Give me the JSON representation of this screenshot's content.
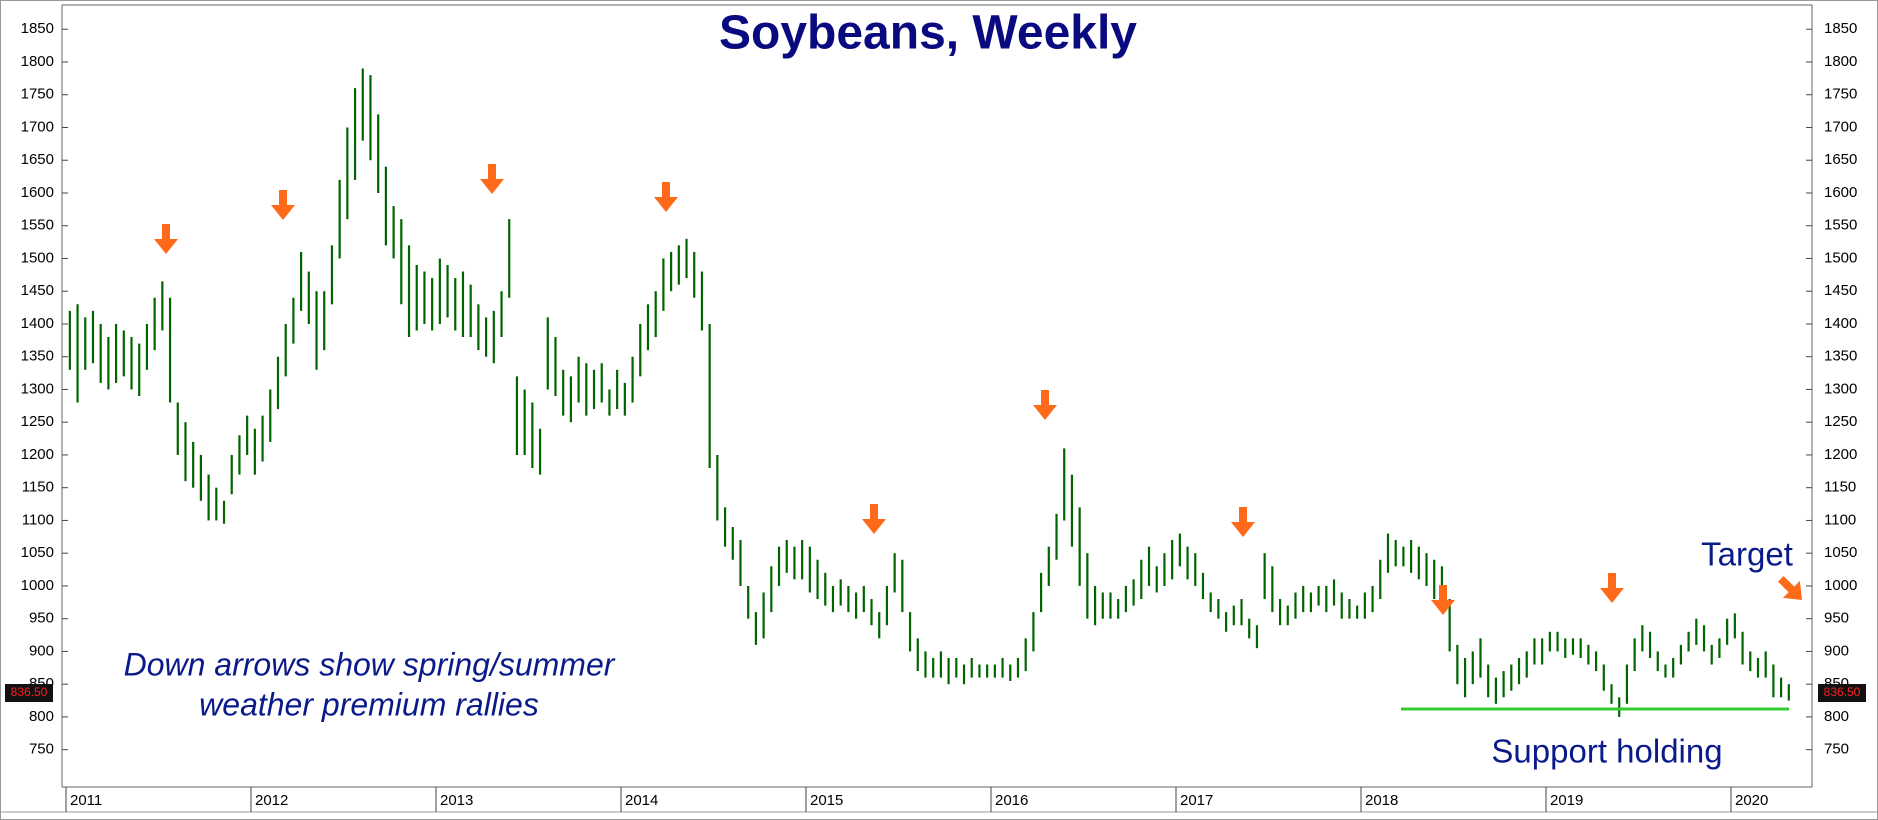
{
  "chart_data": {
    "type": "ohlc",
    "title": "Soybeans, Weekly",
    "color": "#006400",
    "annotation": [
      "Down arrows show spring/summer",
      "weather premium rallies"
    ],
    "target_label": "Target",
    "support": {
      "label": "Support holding",
      "value": 812,
      "color": "#33cc33"
    },
    "last_price": {
      "value": 836.5,
      "label": "836.50"
    },
    "ylim": [
      693,
      1887
    ],
    "yticks": [
      750,
      800,
      850,
      900,
      950,
      1000,
      1050,
      1100,
      1150,
      1200,
      1250,
      1300,
      1350,
      1400,
      1450,
      1500,
      1550,
      1600,
      1650,
      1700,
      1750,
      1800,
      1850
    ],
    "categories": [
      "2011",
      null,
      null,
      null,
      null,
      null,
      null,
      null,
      null,
      null,
      null,
      null,
      null,
      null,
      null,
      null,
      null,
      null,
      null,
      null,
      null,
      null,
      null,
      null,
      "2012",
      null,
      null,
      null,
      null,
      null,
      null,
      null,
      null,
      null,
      null,
      null,
      null,
      null,
      null,
      null,
      null,
      null,
      null,
      null,
      null,
      null,
      null,
      null,
      "2013",
      null,
      null,
      null,
      null,
      null,
      null,
      null,
      null,
      null,
      null,
      null,
      null,
      null,
      null,
      null,
      null,
      null,
      null,
      null,
      null,
      null,
      null,
      null,
      "2014",
      null,
      null,
      null,
      null,
      null,
      null,
      null,
      null,
      null,
      null,
      null,
      null,
      null,
      null,
      null,
      null,
      null,
      null,
      null,
      null,
      null,
      null,
      null,
      "2015",
      null,
      null,
      null,
      null,
      null,
      null,
      null,
      null,
      null,
      null,
      null,
      null,
      null,
      null,
      null,
      null,
      null,
      null,
      null,
      null,
      null,
      null,
      null,
      "2016",
      null,
      null,
      null,
      null,
      null,
      null,
      null,
      null,
      null,
      null,
      null,
      null,
      null,
      null,
      null,
      null,
      null,
      null,
      null,
      null,
      null,
      null,
      null,
      "2017",
      null,
      null,
      null,
      null,
      null,
      null,
      null,
      null,
      null,
      null,
      null,
      null,
      null,
      null,
      null,
      null,
      null,
      null,
      null,
      null,
      null,
      null,
      null,
      "2018",
      null,
      null,
      null,
      null,
      null,
      null,
      null,
      null,
      null,
      null,
      null,
      null,
      null,
      null,
      null,
      null,
      null,
      null,
      null,
      null,
      null,
      null,
      null,
      "2019",
      null,
      null,
      null,
      null,
      null,
      null,
      null,
      null,
      null,
      null,
      null,
      null,
      null,
      null,
      null,
      null,
      null,
      null,
      null,
      null,
      null,
      null,
      null,
      "2020",
      null,
      null,
      null,
      null,
      null,
      null,
      null
    ],
    "high": [
      1420,
      1430,
      1410,
      1420,
      1400,
      1380,
      1400,
      1390,
      1380,
      1370,
      1400,
      1440,
      1465,
      1440,
      1280,
      1250,
      1220,
      1200,
      1170,
      1150,
      1130,
      1200,
      1230,
      1260,
      1240,
      1260,
      1300,
      1350,
      1400,
      1440,
      1510,
      1480,
      1450,
      1450,
      1520,
      1620,
      1700,
      1760,
      1790,
      1780,
      1720,
      1640,
      1580,
      1560,
      1520,
      1490,
      1480,
      1470,
      1500,
      1490,
      1470,
      1480,
      1460,
      1430,
      1410,
      1420,
      1450,
      1560,
      1320,
      1300,
      1280,
      1240,
      1410,
      1380,
      1330,
      1320,
      1350,
      1340,
      1330,
      1340,
      1300,
      1330,
      1310,
      1350,
      1400,
      1430,
      1450,
      1500,
      1510,
      1520,
      1530,
      1510,
      1480,
      1400,
      1200,
      1120,
      1090,
      1070,
      1000,
      960,
      990,
      1030,
      1060,
      1070,
      1060,
      1070,
      1060,
      1040,
      1020,
      1000,
      1010,
      1000,
      990,
      1000,
      980,
      960,
      1000,
      1050,
      1040,
      960,
      920,
      900,
      890,
      900,
      890,
      890,
      880,
      890,
      880,
      880,
      880,
      890,
      880,
      890,
      920,
      960,
      1020,
      1060,
      1110,
      1210,
      1170,
      1120,
      1050,
      1000,
      990,
      990,
      980,
      1000,
      1010,
      1040,
      1060,
      1030,
      1050,
      1070,
      1080,
      1060,
      1050,
      1020,
      990,
      980,
      960,
      970,
      980,
      950,
      940,
      1050,
      1030,
      980,
      970,
      990,
      1000,
      990,
      1000,
      1000,
      1010,
      990,
      980,
      970,
      990,
      1000,
      1040,
      1080,
      1070,
      1060,
      1070,
      1060,
      1050,
      1040,
      1030,
      980,
      910,
      890,
      900,
      920,
      880,
      860,
      870,
      880,
      890,
      900,
      920,
      920,
      930,
      930,
      920,
      920,
      920,
      910,
      900,
      880,
      850,
      830,
      880,
      920,
      940,
      930,
      900,
      880,
      890,
      910,
      930,
      950,
      940,
      910,
      920,
      950,
      958,
      930,
      900,
      890,
      900,
      880,
      860,
      850
    ],
    "low": [
      1330,
      1280,
      1330,
      1340,
      1310,
      1300,
      1310,
      1320,
      1300,
      1290,
      1330,
      1360,
      1390,
      1280,
      1200,
      1160,
      1150,
      1130,
      1100,
      1100,
      1095,
      1140,
      1170,
      1200,
      1170,
      1190,
      1220,
      1270,
      1320,
      1370,
      1420,
      1400,
      1330,
      1360,
      1430,
      1500,
      1560,
      1620,
      1680,
      1650,
      1600,
      1520,
      1500,
      1430,
      1380,
      1390,
      1400,
      1390,
      1400,
      1410,
      1390,
      1380,
      1380,
      1360,
      1350,
      1340,
      1380,
      1440,
      1200,
      1200,
      1180,
      1170,
      1300,
      1290,
      1260,
      1250,
      1280,
      1260,
      1270,
      1280,
      1260,
      1270,
      1260,
      1280,
      1320,
      1360,
      1380,
      1420,
      1450,
      1460,
      1470,
      1440,
      1390,
      1180,
      1100,
      1060,
      1040,
      1000,
      950,
      910,
      920,
      960,
      1000,
      1020,
      1010,
      1010,
      990,
      980,
      970,
      960,
      970,
      960,
      950,
      960,
      940,
      920,
      940,
      990,
      960,
      900,
      870,
      860,
      860,
      860,
      850,
      860,
      850,
      860,
      860,
      860,
      860,
      860,
      855,
      860,
      870,
      900,
      960,
      1000,
      1040,
      1100,
      1060,
      1000,
      950,
      940,
      950,
      950,
      950,
      960,
      970,
      980,
      1000,
      990,
      1000,
      1010,
      1030,
      1010,
      1000,
      980,
      960,
      950,
      930,
      940,
      940,
      920,
      905,
      980,
      960,
      940,
      940,
      950,
      960,
      960,
      970,
      960,
      970,
      950,
      950,
      950,
      950,
      960,
      980,
      1020,
      1030,
      1030,
      1020,
      1010,
      1000,
      980,
      960,
      900,
      850,
      830,
      850,
      860,
      830,
      820,
      830,
      840,
      850,
      860,
      880,
      880,
      900,
      900,
      890,
      895,
      890,
      880,
      870,
      840,
      820,
      800,
      820,
      870,
      900,
      890,
      870,
      860,
      860,
      880,
      900,
      910,
      900,
      880,
      890,
      910,
      920,
      880,
      870,
      860,
      860,
      830,
      830,
      825
    ]
  }
}
